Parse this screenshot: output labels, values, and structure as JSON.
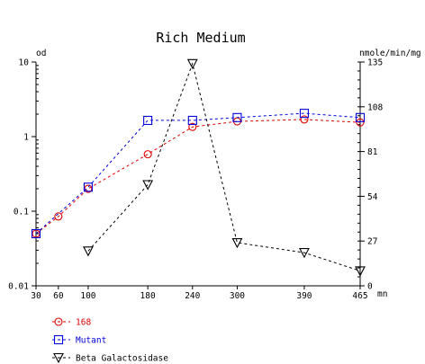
{
  "chart_data": {
    "type": "line",
    "title": "Rich Medium",
    "y_left_label": "od",
    "y_right_label": "nmole/min/mg",
    "x_unit_label": "mn",
    "x": [
      30,
      60,
      100,
      180,
      240,
      300,
      390,
      465
    ],
    "x_ticks": [
      "30",
      "60",
      "100",
      "180",
      "240",
      "300",
      "390",
      "465"
    ],
    "xlim": [
      30,
      465
    ],
    "y_left_scale": "log",
    "y_left_lim": [
      0.01,
      10
    ],
    "y_left_ticks": [
      "0.01",
      "0.1",
      "1",
      "10"
    ],
    "y_right_lim": [
      0,
      135
    ],
    "y_right_ticks": [
      "0",
      "27",
      "54",
      "81",
      "108",
      "135"
    ],
    "grid": false,
    "legend_position": "bottom-left",
    "series": [
      {
        "name": "168",
        "axis": "left",
        "color": "#e00000",
        "marker": "circle",
        "line_style": "dashed",
        "points": [
          [
            30,
            0.05
          ],
          [
            60,
            0.085
          ],
          [
            100,
            0.2
          ],
          [
            180,
            0.58
          ],
          [
            240,
            1.35
          ],
          [
            300,
            1.6
          ],
          [
            390,
            1.7
          ],
          [
            465,
            1.55
          ]
        ]
      },
      {
        "name": "Mutant",
        "axis": "left",
        "color": "#0000e0",
        "marker": "square",
        "line_style": "dashed",
        "points": [
          [
            30,
            0.05
          ],
          [
            100,
            0.21
          ],
          [
            180,
            1.65
          ],
          [
            240,
            1.65
          ],
          [
            300,
            1.8
          ],
          [
            390,
            2.05
          ],
          [
            465,
            1.8
          ]
        ]
      },
      {
        "name": "Beta Galactosidase",
        "axis": "right",
        "color": "#000000",
        "marker": "triangle-down",
        "line_style": "dashed",
        "points": [
          [
            100,
            21
          ],
          [
            180,
            61
          ],
          [
            240,
            134
          ],
          [
            300,
            26
          ],
          [
            390,
            20
          ],
          [
            465,
            9
          ]
        ]
      }
    ]
  }
}
